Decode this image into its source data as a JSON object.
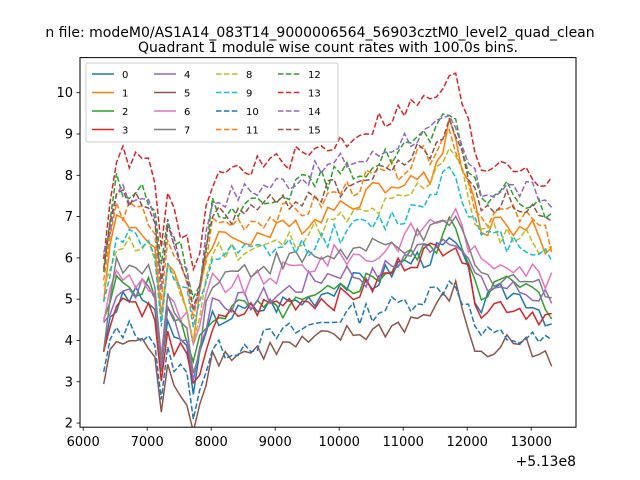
{
  "chart_data": {
    "type": "line",
    "suptitle": "n file: modeM0/AS1A14_083T14_9000006564_56903cztM0_level2_quad_clean",
    "title": "Quadrant 1 module wise count rates with 100.0s bins.",
    "xlabel": "",
    "ylabel": "",
    "x_offset_label": "+5.13e8",
    "xlim": [
      5950,
      13700
    ],
    "ylim": [
      1.9,
      10.85
    ],
    "x_ticks": [
      6000,
      7000,
      8000,
      9000,
      10000,
      11000,
      12000,
      13000
    ],
    "y_ticks": [
      2,
      3,
      4,
      5,
      6,
      7,
      8,
      9,
      10
    ],
    "x_start": 6320,
    "x_step": 100,
    "legend_location": "upper-left",
    "legend_columns": 4,
    "series": [
      {
        "name": "0",
        "color": "#1f77b4",
        "style": "solid",
        "anchors": [
          [
            6320,
            3.9
          ],
          [
            6600,
            5.1
          ],
          [
            7000,
            5.0
          ],
          [
            7400,
            4.2
          ],
          [
            7800,
            3.4
          ],
          [
            8000,
            4.5
          ],
          [
            8500,
            4.7
          ],
          [
            9000,
            4.9
          ],
          [
            9500,
            5.0
          ],
          [
            10000,
            5.4
          ],
          [
            10500,
            5.4
          ],
          [
            11000,
            5.9
          ],
          [
            11500,
            6.1
          ],
          [
            11800,
            6.4
          ],
          [
            12200,
            4.8
          ],
          [
            12600,
            5.2
          ],
          [
            13000,
            5.0
          ],
          [
            13400,
            4.3
          ]
        ]
      },
      {
        "name": "1",
        "color": "#ff7f0e",
        "style": "solid",
        "anchors": [
          [
            6320,
            5.2
          ],
          [
            6500,
            7.0
          ],
          [
            7000,
            6.6
          ],
          [
            7400,
            5.5
          ],
          [
            7700,
            4.5
          ],
          [
            8000,
            6.5
          ],
          [
            8500,
            6.5
          ],
          [
            9000,
            6.6
          ],
          [
            9500,
            6.9
          ],
          [
            10000,
            7.3
          ],
          [
            10500,
            7.6
          ],
          [
            11000,
            8.0
          ],
          [
            11400,
            7.8
          ],
          [
            11750,
            9.3
          ],
          [
            12200,
            6.8
          ],
          [
            12600,
            6.8
          ],
          [
            13000,
            6.7
          ],
          [
            13400,
            5.9
          ]
        ]
      },
      {
        "name": "2",
        "color": "#2ca02c",
        "style": "solid",
        "anchors": [
          [
            6320,
            4.3
          ],
          [
            6500,
            5.4
          ],
          [
            7000,
            5.3
          ],
          [
            7400,
            4.5
          ],
          [
            7800,
            3.9
          ],
          [
            8000,
            4.6
          ],
          [
            8500,
            4.8
          ],
          [
            9000,
            4.7
          ],
          [
            9500,
            4.9
          ],
          [
            10000,
            5.2
          ],
          [
            10500,
            5.5
          ],
          [
            11000,
            5.9
          ],
          [
            11500,
            6.3
          ],
          [
            11800,
            6.9
          ],
          [
            12200,
            5.2
          ],
          [
            12600,
            5.4
          ],
          [
            13000,
            5.2
          ],
          [
            13400,
            4.5
          ]
        ]
      },
      {
        "name": "3",
        "color": "#d62728",
        "style": "solid",
        "anchors": [
          [
            6320,
            3.6
          ],
          [
            6500,
            5.1
          ],
          [
            7000,
            4.8
          ],
          [
            7400,
            3.9
          ],
          [
            7800,
            3.2
          ],
          [
            8000,
            4.3
          ],
          [
            8500,
            4.7
          ],
          [
            9000,
            4.9
          ],
          [
            9500,
            5.0
          ],
          [
            10000,
            5.0
          ],
          [
            10500,
            5.3
          ],
          [
            11000,
            5.9
          ],
          [
            11500,
            6.2
          ],
          [
            11800,
            6.5
          ],
          [
            12200,
            4.8
          ],
          [
            12600,
            4.9
          ],
          [
            13000,
            4.7
          ],
          [
            13400,
            4.5
          ]
        ]
      },
      {
        "name": "4",
        "color": "#9467bd",
        "style": "solid",
        "anchors": [
          [
            6320,
            4.4
          ],
          [
            6500,
            5.2
          ],
          [
            7000,
            5.3
          ],
          [
            7400,
            4.5
          ],
          [
            7800,
            3.6
          ],
          [
            8000,
            5.0
          ],
          [
            8500,
            4.9
          ],
          [
            9000,
            5.1
          ],
          [
            9500,
            5.4
          ],
          [
            10000,
            5.7
          ],
          [
            10500,
            5.5
          ],
          [
            11000,
            6.0
          ],
          [
            11500,
            6.4
          ],
          [
            11800,
            6.6
          ],
          [
            12200,
            5.3
          ],
          [
            12600,
            5.3
          ],
          [
            13000,
            5.1
          ],
          [
            13400,
            5.1
          ]
        ]
      },
      {
        "name": "5",
        "color": "#8c564b",
        "style": "solid",
        "anchors": [
          [
            6320,
            3.0
          ],
          [
            6500,
            4.0
          ],
          [
            7000,
            3.9
          ],
          [
            7400,
            3.1
          ],
          [
            7750,
            2.3
          ],
          [
            8000,
            3.6
          ],
          [
            8500,
            3.7
          ],
          [
            9000,
            3.8
          ],
          [
            9500,
            3.9
          ],
          [
            10000,
            4.1
          ],
          [
            10500,
            4.2
          ],
          [
            11000,
            4.4
          ],
          [
            11500,
            4.7
          ],
          [
            11800,
            5.3
          ],
          [
            12200,
            3.5
          ],
          [
            12600,
            4.0
          ],
          [
            13000,
            3.9
          ],
          [
            13400,
            3.2
          ]
        ]
      },
      {
        "name": "6",
        "color": "#e377c2",
        "style": "solid",
        "anchors": [
          [
            6320,
            4.6
          ],
          [
            6500,
            5.6
          ],
          [
            7000,
            5.4
          ],
          [
            7400,
            4.8
          ],
          [
            7800,
            4.2
          ],
          [
            8000,
            5.4
          ],
          [
            8500,
            5.3
          ],
          [
            9000,
            5.6
          ],
          [
            9500,
            5.8
          ],
          [
            10000,
            6.1
          ],
          [
            10500,
            6.0
          ],
          [
            11000,
            6.5
          ],
          [
            11500,
            6.9
          ],
          [
            11800,
            7.1
          ],
          [
            12200,
            5.8
          ],
          [
            12600,
            6.0
          ],
          [
            13000,
            5.7
          ],
          [
            13400,
            5.3
          ]
        ]
      },
      {
        "name": "7",
        "color": "#7f7f7f",
        "style": "solid",
        "anchors": [
          [
            6320,
            4.0
          ],
          [
            6500,
            5.8
          ],
          [
            7000,
            5.6
          ],
          [
            7400,
            4.8
          ],
          [
            7800,
            3.8
          ],
          [
            8000,
            5.5
          ],
          [
            8500,
            5.7
          ],
          [
            9000,
            5.9
          ],
          [
            9500,
            6.0
          ],
          [
            10000,
            6.1
          ],
          [
            10500,
            6.2
          ],
          [
            11000,
            6.3
          ],
          [
            11500,
            6.6
          ],
          [
            11800,
            7.0
          ],
          [
            12200,
            5.5
          ],
          [
            12600,
            5.6
          ],
          [
            13000,
            5.4
          ],
          [
            13400,
            5.0
          ]
        ]
      },
      {
        "name": "8",
        "color": "#bcbd22",
        "style": "dashed",
        "anchors": [
          [
            6320,
            5.1
          ],
          [
            6500,
            6.4
          ],
          [
            7000,
            6.3
          ],
          [
            7400,
            5.4
          ],
          [
            7800,
            4.4
          ],
          [
            8000,
            6.2
          ],
          [
            8500,
            6.2
          ],
          [
            9000,
            6.3
          ],
          [
            9500,
            6.6
          ],
          [
            10000,
            6.9
          ],
          [
            10500,
            7.1
          ],
          [
            11000,
            7.4
          ],
          [
            11400,
            7.9
          ],
          [
            11750,
            8.8
          ],
          [
            12200,
            6.6
          ],
          [
            12600,
            6.6
          ],
          [
            13000,
            6.5
          ],
          [
            13400,
            6.0
          ]
        ]
      },
      {
        "name": "9",
        "color": "#17becf",
        "style": "dashed",
        "anchors": [
          [
            6320,
            4.8
          ],
          [
            6500,
            6.6
          ],
          [
            7000,
            6.4
          ],
          [
            7400,
            5.5
          ],
          [
            7800,
            4.6
          ],
          [
            8000,
            6.0
          ],
          [
            8500,
            6.1
          ],
          [
            9000,
            6.2
          ],
          [
            9500,
            6.3
          ],
          [
            10000,
            6.6
          ],
          [
            10500,
            6.8
          ],
          [
            11000,
            7.0
          ],
          [
            11400,
            7.5
          ],
          [
            11750,
            8.3
          ],
          [
            12200,
            6.5
          ],
          [
            12600,
            6.4
          ],
          [
            13000,
            6.3
          ],
          [
            13400,
            6.0
          ]
        ]
      },
      {
        "name": "10",
        "color": "#1f77b4",
        "style": "dashed",
        "anchors": [
          [
            6320,
            3.2
          ],
          [
            6500,
            4.3
          ],
          [
            7000,
            4.2
          ],
          [
            7400,
            3.5
          ],
          [
            7800,
            2.8
          ],
          [
            8000,
            3.7
          ],
          [
            8500,
            3.9
          ],
          [
            9000,
            4.1
          ],
          [
            9500,
            4.3
          ],
          [
            10000,
            4.6
          ],
          [
            10500,
            4.7
          ],
          [
            11000,
            4.9
          ],
          [
            11500,
            5.2
          ],
          [
            11800,
            5.5
          ],
          [
            12200,
            4.1
          ],
          [
            12600,
            4.1
          ],
          [
            13000,
            4.0
          ],
          [
            13400,
            3.9
          ]
        ]
      },
      {
        "name": "11",
        "color": "#ff7f0e",
        "style": "dashed",
        "anchors": [
          [
            6320,
            5.5
          ],
          [
            6500,
            7.2
          ],
          [
            7000,
            7.0
          ],
          [
            7400,
            6.0
          ],
          [
            7800,
            5.0
          ],
          [
            8000,
            6.8
          ],
          [
            8500,
            6.9
          ],
          [
            9000,
            7.0
          ],
          [
            9500,
            7.2
          ],
          [
            10000,
            7.6
          ],
          [
            10500,
            7.9
          ],
          [
            11000,
            8.2
          ],
          [
            11400,
            8.5
          ],
          [
            11750,
            9.1
          ],
          [
            12200,
            7.0
          ],
          [
            12600,
            7.1
          ],
          [
            13000,
            6.9
          ],
          [
            13400,
            6.2
          ]
        ]
      },
      {
        "name": "12",
        "color": "#2ca02c",
        "style": "dashed",
        "anchors": [
          [
            6320,
            5.8
          ],
          [
            6500,
            7.8
          ],
          [
            7000,
            7.6
          ],
          [
            7400,
            6.5
          ],
          [
            7800,
            5.3
          ],
          [
            8000,
            7.2
          ],
          [
            8500,
            7.2
          ],
          [
            9000,
            7.6
          ],
          [
            9500,
            7.8
          ],
          [
            10000,
            8.0
          ],
          [
            10500,
            8.2
          ],
          [
            11000,
            8.7
          ],
          [
            11400,
            8.9
          ],
          [
            11750,
            9.4
          ],
          [
            12200,
            7.5
          ],
          [
            12600,
            7.6
          ],
          [
            13000,
            7.3
          ],
          [
            13400,
            7.0
          ]
        ]
      },
      {
        "name": "13",
        "color": "#d62728",
        "style": "dashed",
        "anchors": [
          [
            6320,
            6.2
          ],
          [
            6500,
            8.5
          ],
          [
            7000,
            8.3
          ],
          [
            7400,
            7.1
          ],
          [
            7800,
            5.8
          ],
          [
            8000,
            7.9
          ],
          [
            8500,
            8.2
          ],
          [
            9000,
            8.3
          ],
          [
            9500,
            8.5
          ],
          [
            10000,
            8.8
          ],
          [
            10500,
            9.2
          ],
          [
            11000,
            9.6
          ],
          [
            11400,
            9.8
          ],
          [
            11800,
            10.4
          ],
          [
            12200,
            8.2
          ],
          [
            12600,
            8.4
          ],
          [
            13000,
            8.1
          ],
          [
            13400,
            7.6
          ]
        ]
      },
      {
        "name": "14",
        "color": "#9467bd",
        "style": "dashed",
        "anchors": [
          [
            6320,
            5.9
          ],
          [
            6500,
            7.6
          ],
          [
            7000,
            7.4
          ],
          [
            7400,
            6.4
          ],
          [
            7800,
            5.2
          ],
          [
            8000,
            7.4
          ],
          [
            8500,
            7.6
          ],
          [
            9000,
            7.8
          ],
          [
            9500,
            8.0
          ],
          [
            10000,
            8.3
          ],
          [
            10500,
            8.4
          ],
          [
            11000,
            8.9
          ],
          [
            11400,
            9.0
          ],
          [
            11750,
            9.3
          ],
          [
            12200,
            7.6
          ],
          [
            12600,
            7.7
          ],
          [
            13000,
            7.6
          ],
          [
            13400,
            7.2
          ]
        ]
      },
      {
        "name": "15",
        "color": "#8c564b",
        "style": "dashed",
        "anchors": [
          [
            6320,
            5.6
          ],
          [
            6500,
            7.5
          ],
          [
            7000,
            7.3
          ],
          [
            7400,
            6.3
          ],
          [
            7800,
            5.1
          ],
          [
            8000,
            7.0
          ],
          [
            8500,
            7.1
          ],
          [
            9000,
            7.3
          ],
          [
            9500,
            7.5
          ],
          [
            10000,
            7.7
          ],
          [
            10500,
            7.9
          ],
          [
            11000,
            8.4
          ],
          [
            11400,
            8.6
          ],
          [
            11750,
            9.2
          ],
          [
            12200,
            7.3
          ],
          [
            12600,
            7.4
          ],
          [
            13000,
            7.2
          ],
          [
            13400,
            6.6
          ]
        ]
      }
    ]
  }
}
